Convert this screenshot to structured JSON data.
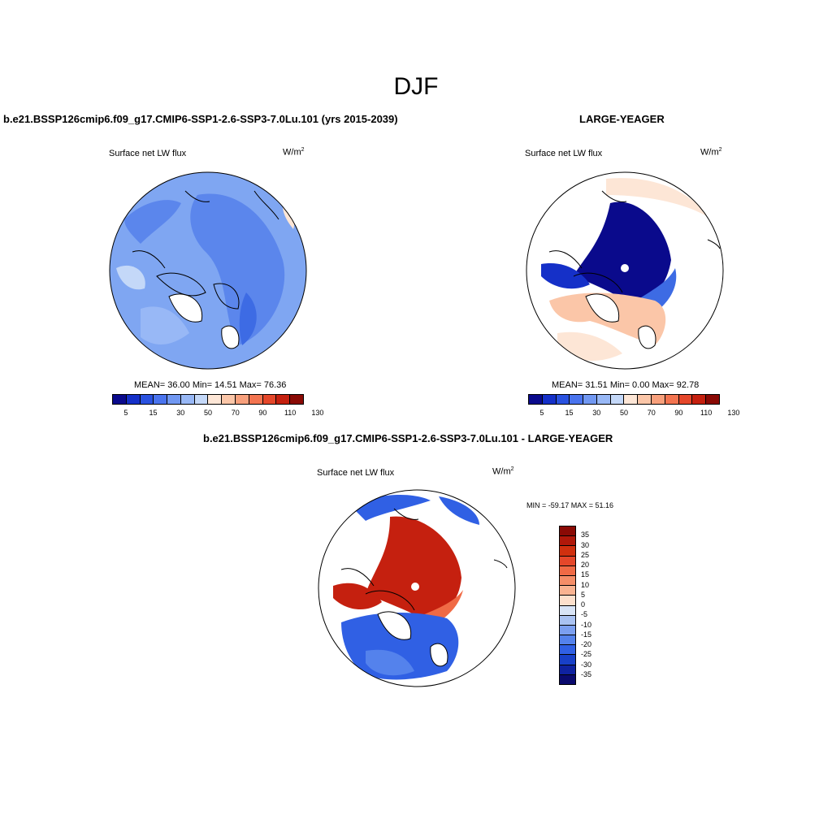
{
  "title": "DJF",
  "panels": [
    {
      "header": "b.e21.BSSP126cmip6.f09_g17.CMIP6-SSP1-2.6-SSP3-7.0Lu.101 (yrs 2015-2039)",
      "variable": "Surface net LW flux",
      "units_base": "W/m",
      "units_exp": "2",
      "stats": "MEAN=  36.00  Min=  14.51  Max=  76.36"
    },
    {
      "header": "LARGE-YEAGER",
      "variable": "Surface net LW flux",
      "units_base": "W/m",
      "units_exp": "2",
      "stats": "MEAN=  31.51  Min=   0.00  Max=  92.78"
    },
    {
      "header": "b.e21.BSSP126cmip6.f09_g17.CMIP6-SSP1-2.6-SSP3-7.0Lu.101 - LARGE-YEAGER",
      "variable": "Surface net LW flux",
      "units_base": "W/m",
      "units_exp": "2",
      "stats": "MIN = -59.17 MAX =  51.16"
    }
  ],
  "colorbar_abs": {
    "labels": [
      "5",
      "15",
      "30",
      "50",
      "70",
      "90",
      "110",
      "130"
    ],
    "colors": [
      "#0a0a8c",
      "#1530c8",
      "#2a52e0",
      "#4a74ee",
      "#7198f2",
      "#98b8f6",
      "#c4d8f8",
      "#fde6d6",
      "#fbc6a8",
      "#f8a07c",
      "#f37450",
      "#e5472a",
      "#c5200f",
      "#8a0a05"
    ]
  },
  "colorbar_diff": {
    "labels": [
      "35",
      "30",
      "25",
      "20",
      "15",
      "10",
      "5",
      "0",
      "-5",
      "-10",
      "-15",
      "-20",
      "-25",
      "-30",
      "-35"
    ],
    "colors": [
      "#8a0a05",
      "#b0180a",
      "#d0300f",
      "#e5472a",
      "#f06a45",
      "#f58e68",
      "#f9b391",
      "#fde0cc",
      "#d8e4f6",
      "#a9c2f2",
      "#7b9ff0",
      "#5482ec",
      "#3060e4",
      "#1840c8",
      "#0f22a0",
      "#0a0a6e"
    ]
  },
  "maps": {
    "ocean_colors": [
      "#7fa6f2",
      "#5b86ec",
      "#3d6be4"
    ],
    "land_color": "#ffffff",
    "coast_color": "#000000"
  }
}
